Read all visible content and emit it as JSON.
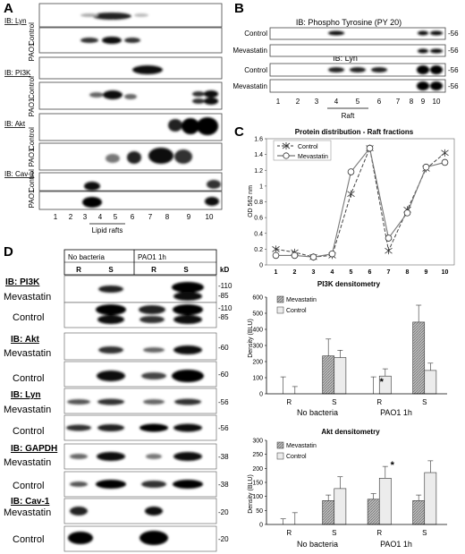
{
  "panel_a": {
    "letter": "A",
    "groups": [
      {
        "ib": "IB: Lyn",
        "rows": [
          "Control",
          "PAO1"
        ]
      },
      {
        "ib": "IB: PI3K",
        "rows": [
          "Control",
          "PAO1"
        ]
      },
      {
        "ib": "IB: Akt",
        "rows": [
          "Control",
          "PAO1"
        ]
      },
      {
        "ib": "IB: Cav-1",
        "rows": [
          "Control",
          "PAO1"
        ]
      }
    ],
    "lanes": [
      "1",
      "2",
      "3",
      "4",
      "5",
      "6",
      "7",
      "8",
      "9",
      "10"
    ],
    "raft_label": "Lipid rafts"
  },
  "panel_b": {
    "letter": "B",
    "ib_top": "IB: Phospho Tyrosine (PY 20)",
    "ib_bottom": "IB: Lyn",
    "rows": [
      "Control",
      "Mevastatin",
      "Control",
      "Mevastatin"
    ],
    "kd": "-56",
    "lanes": [
      "1",
      "2",
      "3",
      "4",
      "5",
      "6",
      "7",
      "8",
      "9",
      "10"
    ],
    "raft_label": "Raft"
  },
  "panel_c": {
    "letter": "C",
    "chart_data": {
      "type": "line",
      "title": "Protein distribution - Raft fractions",
      "ylabel": "OD 562 nm",
      "x": [
        1,
        2,
        3,
        4,
        5,
        6,
        7,
        8,
        9,
        10
      ],
      "ylim": [
        0,
        1.6
      ],
      "yticks": [
        "0",
        "0.2",
        "0.4",
        "0.6",
        "0.8",
        "1",
        "1.2",
        "1.4",
        "1.6"
      ],
      "series": [
        {
          "name": "Control",
          "values": [
            0.2,
            0.16,
            0.1,
            0.12,
            0.9,
            1.48,
            0.18,
            0.7,
            1.22,
            1.42
          ]
        },
        {
          "name": "Mevastatin",
          "values": [
            0.12,
            0.12,
            0.1,
            0.14,
            1.18,
            1.48,
            0.34,
            0.66,
            1.24,
            1.3
          ]
        }
      ]
    }
  },
  "panel_d": {
    "letter": "D",
    "header_left": "No bacteria",
    "header_right": "PAO1 1h",
    "lanes": [
      "R",
      "S",
      "R",
      "S"
    ],
    "kd_header": "kD",
    "groups": [
      {
        "ib": "IB: PI3K",
        "rows": [
          "Mevastatin",
          "Control"
        ],
        "kd": [
          "-110",
          "-85",
          "-110",
          "-85"
        ]
      },
      {
        "ib": "IB: Akt",
        "rows": [
          "Mevastatin",
          "Control"
        ],
        "kd": [
          "-60",
          "-60"
        ]
      },
      {
        "ib": "IB: Lyn",
        "rows": [
          "Mevastatin",
          "Control"
        ],
        "kd": [
          "-56",
          "-56"
        ]
      },
      {
        "ib": "IB: GAPDH",
        "rows": [
          "Mevastatin",
          "Control"
        ],
        "kd": [
          "-38",
          "-38"
        ]
      },
      {
        "ib": "IB: Cav-1",
        "rows": [
          "Mevastatin",
          "Control"
        ],
        "kd": [
          "-20",
          "-20"
        ]
      }
    ]
  },
  "chart_pi3k": {
    "chart_data": {
      "type": "bar",
      "title": "PI3K densitometry",
      "ylabel": "Density (BLU)",
      "categories": [
        "R",
        "S",
        "R",
        "S"
      ],
      "groups": [
        "No bacteria",
        "PAO1 1h"
      ],
      "ylim": [
        0,
        600
      ],
      "yticks": [
        "0",
        "100",
        "200",
        "300",
        "400",
        "500",
        "600"
      ],
      "series": [
        {
          "name": "Mevastatin",
          "values": [
            0,
            235,
            0,
            445
          ],
          "err": [
            105,
            105,
            105,
            105
          ]
        },
        {
          "name": "Control",
          "values": [
            0,
            225,
            110,
            145
          ],
          "err": [
            45,
            45,
            45,
            45
          ]
        }
      ],
      "annotation": "*"
    }
  },
  "chart_akt": {
    "chart_data": {
      "type": "bar",
      "title": "Akt densitometry",
      "ylabel": "Density (BLU)",
      "categories": [
        "R",
        "S",
        "R",
        "S"
      ],
      "groups": [
        "No bacteria",
        "PAO1 1h"
      ],
      "ylim": [
        0,
        300
      ],
      "yticks": [
        "0",
        "50",
        "100",
        "150",
        "200",
        "250",
        "300"
      ],
      "series": [
        {
          "name": "Mevastatin",
          "values": [
            0,
            85,
            90,
            85
          ],
          "err": [
            20,
            20,
            20,
            20
          ]
        },
        {
          "name": "Control",
          "values": [
            0,
            128,
            165,
            185
          ],
          "err": [
            42,
            42,
            42,
            42
          ]
        }
      ],
      "annotation": "*"
    }
  }
}
